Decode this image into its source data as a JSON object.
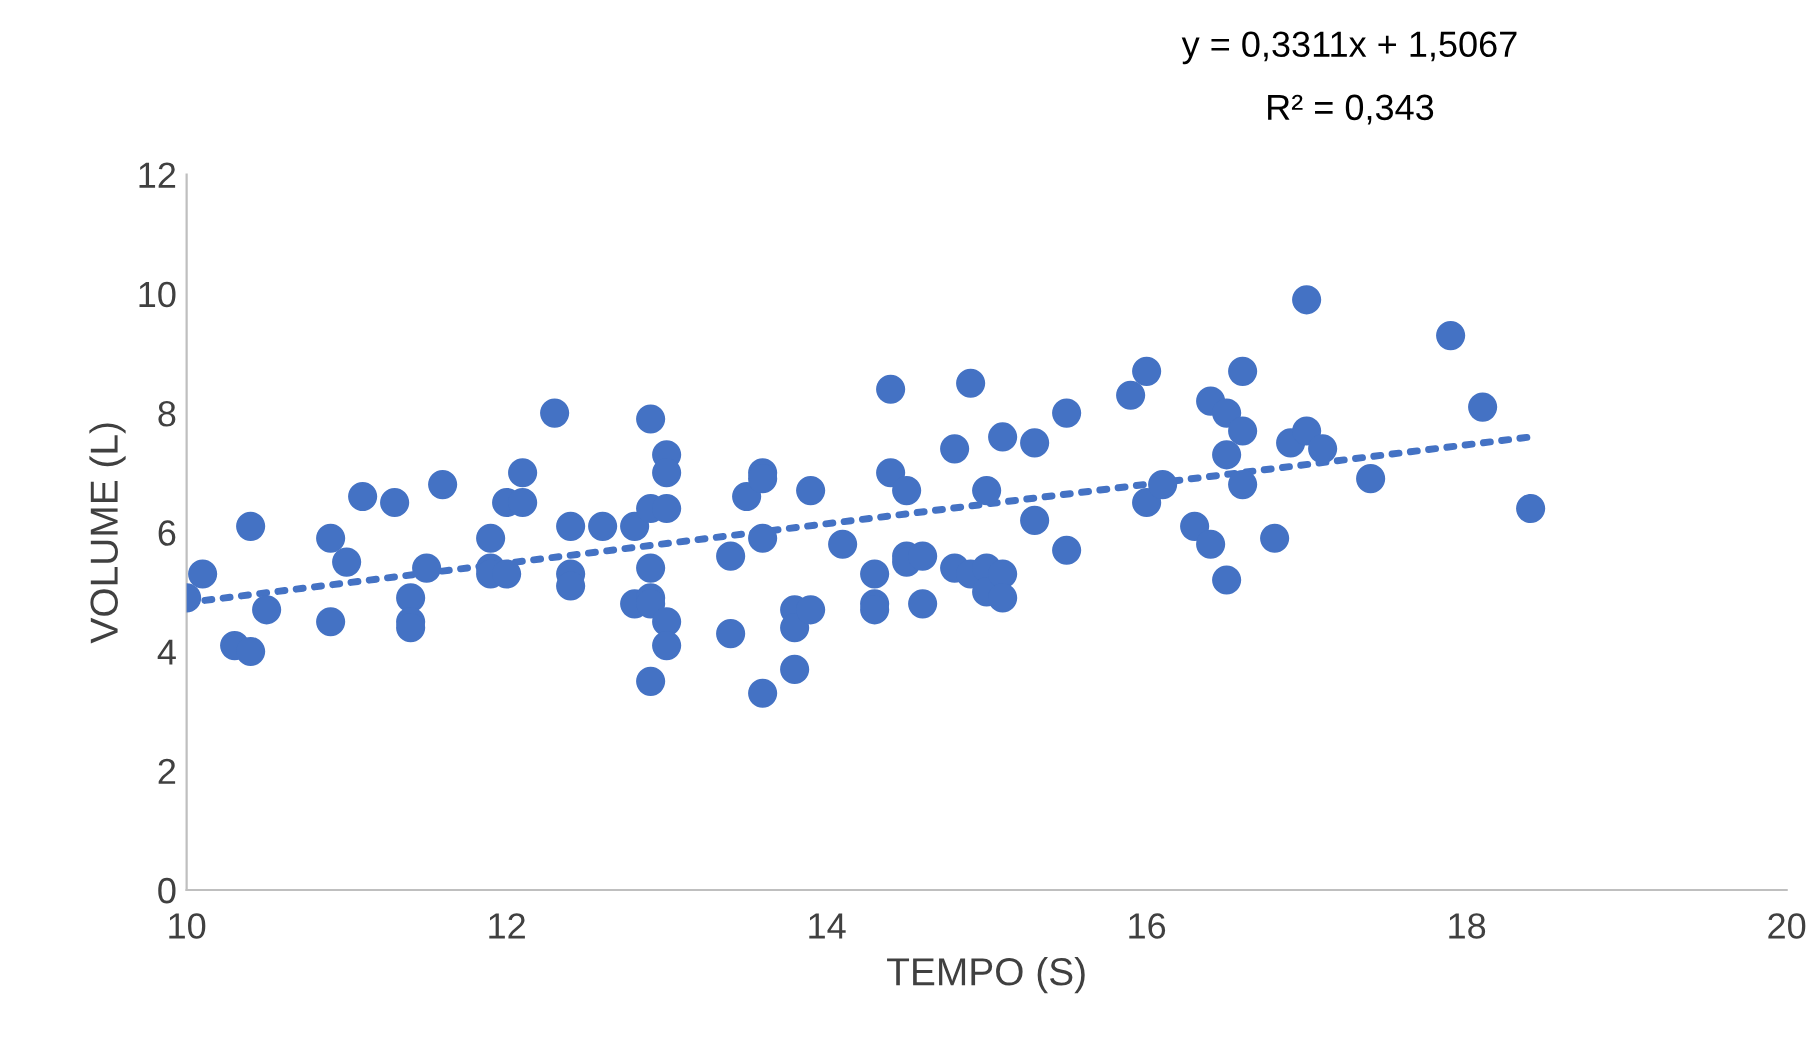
{
  "chart_data": {
    "type": "scatter",
    "xlabel": "TEMPO (S)",
    "ylabel": "VOLUME (L)",
    "annotations": [
      "y = 0,3311x + 1,5067",
      "R² = 0,343"
    ],
    "xlim": [
      10,
      20
    ],
    "xticks": [
      10,
      12,
      14,
      16,
      18,
      20
    ],
    "ylim": [
      0,
      12
    ],
    "yticks": [
      0,
      2,
      4,
      6,
      8,
      10,
      12
    ],
    "grid": false,
    "legend": false,
    "series": [
      {
        "marker": "circle",
        "color": "#4472c4",
        "x": [
          10.0,
          10.1,
          10.3,
          10.4,
          10.4,
          10.5,
          10.9,
          10.9,
          11.0,
          11.1,
          11.3,
          11.4,
          11.4,
          11.4,
          11.5,
          11.6,
          11.9,
          11.9,
          11.9,
          12.0,
          12.0,
          12.1,
          12.1,
          12.3,
          12.4,
          12.4,
          12.4,
          12.6,
          12.8,
          12.8,
          12.9,
          12.9,
          12.9,
          12.9,
          12.9,
          12.9,
          13.0,
          13.0,
          13.0,
          13.0,
          13.0,
          13.4,
          13.4,
          13.5,
          13.6,
          13.6,
          13.6,
          13.6,
          13.8,
          13.8,
          13.8,
          13.9,
          13.9,
          14.1,
          14.3,
          14.3,
          14.3,
          14.4,
          14.4,
          14.5,
          14.5,
          14.5,
          14.6,
          14.6,
          14.8,
          14.8,
          14.9,
          14.9,
          15.0,
          15.0,
          15.0,
          15.1,
          15.1,
          15.1,
          15.3,
          15.3,
          15.5,
          15.5,
          15.9,
          16.0,
          16.0,
          16.1,
          16.3,
          16.4,
          16.4,
          16.5,
          16.5,
          16.5,
          16.6,
          16.6,
          16.6,
          16.8,
          16.9,
          17.0,
          17.0,
          17.1,
          17.4,
          17.9,
          18.1,
          18.4
        ],
        "values": [
          4.9,
          5.3,
          4.1,
          4.0,
          6.1,
          4.7,
          5.9,
          4.5,
          5.5,
          6.6,
          6.5,
          4.9,
          4.5,
          4.4,
          5.4,
          6.8,
          5.9,
          5.4,
          5.3,
          6.5,
          5.3,
          7.0,
          6.5,
          8.0,
          6.1,
          5.3,
          5.1,
          6.1,
          6.1,
          4.8,
          7.9,
          6.4,
          5.4,
          4.9,
          4.8,
          3.5,
          7.3,
          7.0,
          6.4,
          4.5,
          4.1,
          5.6,
          4.3,
          6.6,
          7.0,
          6.9,
          5.9,
          3.3,
          4.7,
          4.4,
          3.7,
          6.7,
          4.7,
          5.8,
          5.3,
          4.8,
          4.7,
          8.4,
          7.0,
          6.7,
          5.6,
          5.5,
          5.6,
          4.8,
          7.4,
          5.4,
          8.5,
          5.3,
          6.7,
          5.4,
          5.0,
          7.6,
          5.3,
          4.9,
          7.5,
          6.2,
          8.0,
          5.7,
          8.3,
          8.7,
          6.5,
          6.8,
          6.1,
          8.2,
          5.8,
          8.0,
          7.3,
          5.2,
          8.7,
          7.7,
          6.8,
          5.9,
          7.5,
          9.9,
          7.7,
          7.4,
          6.9,
          9.3,
          8.1,
          6.4
        ]
      },
      {
        "type": "line",
        "color": "#4472c4",
        "line_style": "dotted",
        "marker": "none",
        "x": [
          10.0,
          18.4
        ],
        "values": [
          4.82,
          7.6
        ]
      }
    ]
  }
}
